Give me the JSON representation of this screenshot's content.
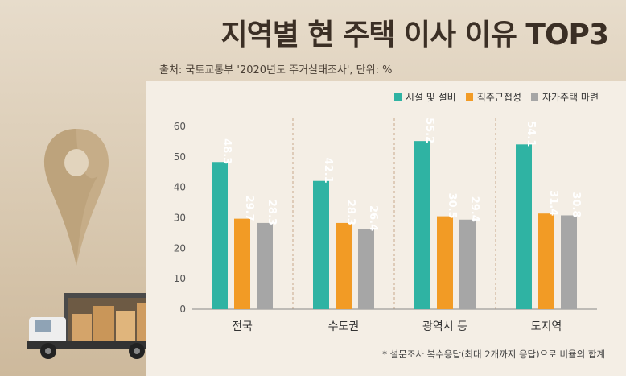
{
  "title": "지역별 현 주택 이사 이유 TOP3",
  "source": "출처: 국토교통부 '2020년도 주거실태조사', 단위: %",
  "footnote": "* 설문조사 복수응답(최대 2개까지 응답)으로 비율의 합계",
  "chart_data": {
    "type": "bar",
    "categories": [
      "전국",
      "수도권",
      "광역시 등",
      "도지역"
    ],
    "series": [
      {
        "name": "시설 및 설비",
        "color": "#2fb3a3",
        "values": [
          48.3,
          42.1,
          55.2,
          54.1
        ]
      },
      {
        "name": "직주근접성",
        "color": "#f29b25",
        "values": [
          29.7,
          28.3,
          30.5,
          31.4
        ]
      },
      {
        "name": "자가주택 마련",
        "color": "#a6a6a6",
        "values": [
          28.3,
          26.4,
          29.4,
          30.8
        ]
      }
    ],
    "yticks": [
      "0",
      "10",
      "20",
      "30",
      "40",
      "50",
      "60"
    ],
    "ylim": [
      0,
      60
    ],
    "legend_position": "top-right",
    "grid": false,
    "category_separators": "dashed"
  }
}
